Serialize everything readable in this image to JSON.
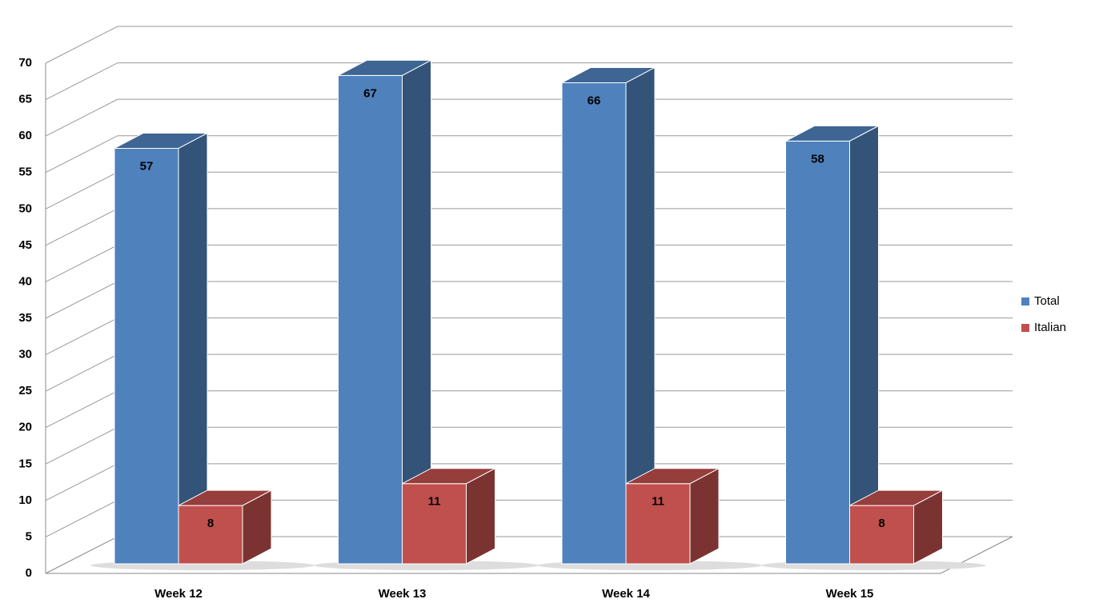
{
  "chart_data": {
    "type": "bar",
    "categories": [
      "Week 12",
      "Week 13",
      "Week 14",
      "Week 15"
    ],
    "series": [
      {
        "name": "Total",
        "color": "#4f81bd",
        "values": [
          57,
          67,
          66,
          58
        ]
      },
      {
        "name": "Italian",
        "color": "#c0504d",
        "values": [
          8,
          11,
          11,
          8
        ]
      }
    ],
    "ylim": [
      0,
      70
    ],
    "yticks": [
      0,
      5,
      10,
      15,
      20,
      25,
      30,
      35,
      40,
      45,
      50,
      55,
      60,
      65,
      70
    ],
    "grid": true,
    "legend": "right"
  }
}
